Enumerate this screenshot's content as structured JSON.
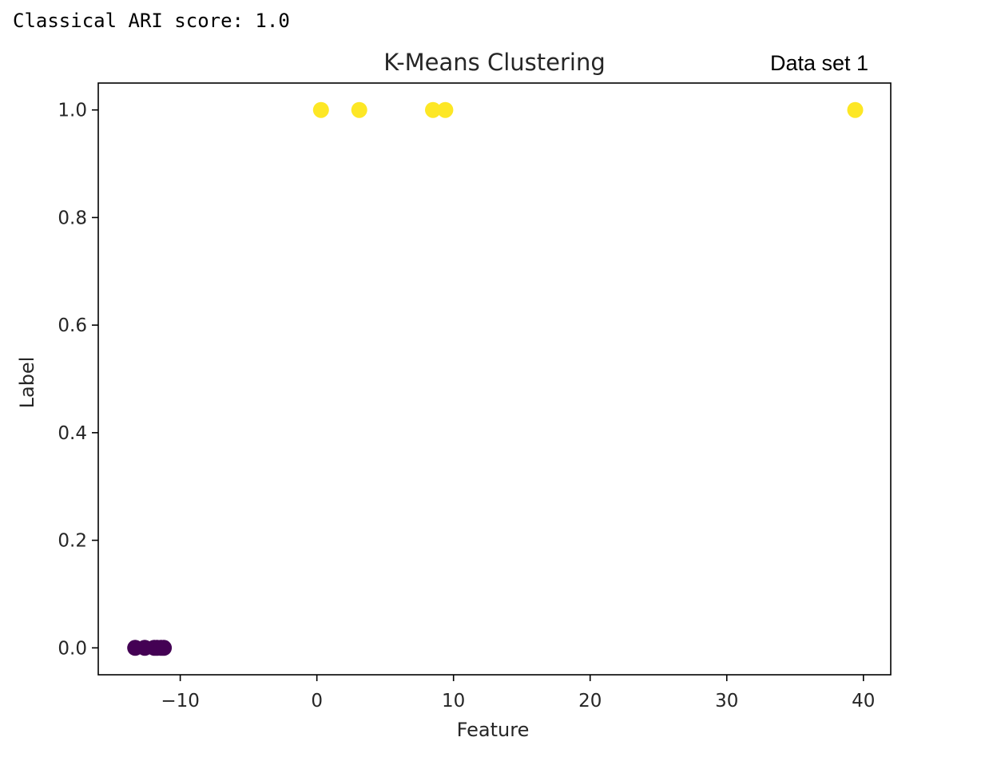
{
  "output": {
    "text": "Classical ARI score: 1.0"
  },
  "annotation": {
    "text": "Data set 1"
  },
  "chart_data": {
    "type": "scatter",
    "title": "K-Means Clustering",
    "xlabel": "Feature",
    "ylabel": "Label",
    "xlim": [
      -16,
      42
    ],
    "ylim": [
      -0.05,
      1.05
    ],
    "xticks": [
      -10,
      0,
      10,
      20,
      30,
      40
    ],
    "xtick_labels": [
      "−10",
      "0",
      "10",
      "20",
      "30",
      "40"
    ],
    "yticks": [
      0.0,
      0.2,
      0.4,
      0.6,
      0.8,
      1.0
    ],
    "ytick_labels": [
      "0.0",
      "0.2",
      "0.4",
      "0.6",
      "0.8",
      "1.0"
    ],
    "grid": false,
    "series": [
      {
        "color": "#440154",
        "x": [
          -13.3,
          -12.6,
          -11.9,
          -11.7,
          -11.4,
          -11.2
        ],
        "y": [
          0,
          0,
          0,
          0,
          0,
          0
        ]
      },
      {
        "color": "#fde725",
        "x": [
          0.3,
          3.1,
          8.5,
          9.4,
          39.4
        ],
        "y": [
          1,
          1,
          1,
          1,
          1
        ]
      }
    ]
  }
}
